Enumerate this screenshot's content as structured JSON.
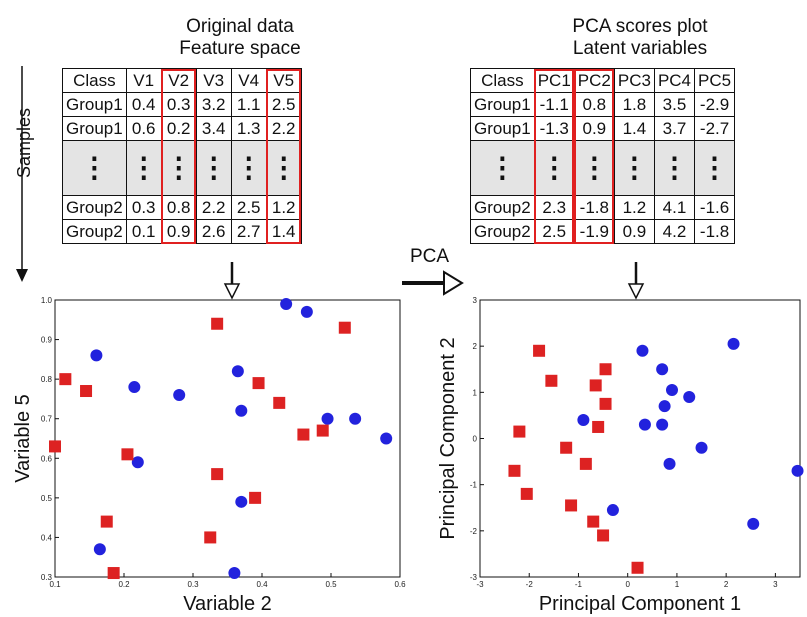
{
  "left_title": [
    "Original data",
    "Feature space"
  ],
  "right_title": [
    "PCA scores plot",
    "Latent variables"
  ],
  "samples_label": "Samples",
  "pca_label": "PCA",
  "left_table": {
    "headers": [
      "Class",
      "V1",
      "V2",
      "V3",
      "V4",
      "V5"
    ],
    "rows": [
      [
        "Group1",
        "0.4",
        "0.3",
        "3.2",
        "1.1",
        "2.5"
      ],
      [
        "Group1",
        "0.6",
        "0.2",
        "3.4",
        "1.3",
        "2.2"
      ],
      [
        "⋮",
        "⋮",
        "⋮",
        "⋮",
        "⋮",
        "⋮"
      ],
      [
        "Group2",
        "0.3",
        "0.8",
        "2.2",
        "2.5",
        "1.2"
      ],
      [
        "Group2",
        "0.1",
        "0.9",
        "2.6",
        "2.7",
        "1.4"
      ]
    ]
  },
  "right_table": {
    "headers": [
      "Class",
      "PC1",
      "PC2",
      "PC3",
      "PC4",
      "PC5"
    ],
    "rows": [
      [
        "Group1",
        "-1.1",
        "0.8",
        "1.8",
        "3.5",
        "-2.9"
      ],
      [
        "Group1",
        "-1.3",
        "0.9",
        "1.4",
        "3.7",
        "-2.7"
      ],
      [
        "⋮",
        "⋮",
        "⋮",
        "⋮",
        "⋮",
        "⋮"
      ],
      [
        "Group2",
        "2.3",
        "-1.8",
        "1.2",
        "4.1",
        "-1.6"
      ],
      [
        "Group2",
        "2.5",
        "-1.9",
        "0.9",
        "4.2",
        "-1.8"
      ]
    ]
  },
  "colors": {
    "group1": "#2222dd",
    "group2": "#dd2222",
    "highlight": "#e02020"
  },
  "chart_data": [
    {
      "type": "scatter",
      "xlabel": "Variable 2",
      "ylabel": "Variable 5",
      "xlim": [
        0.1,
        0.6
      ],
      "ylim": [
        0.3,
        1.0
      ],
      "xticks": [
        "0.1",
        "0.2",
        "0.3",
        "0.4",
        "0.5",
        "0.6"
      ],
      "yticks": [
        "0.3",
        "0.4",
        "0.5",
        "0.6",
        "0.7",
        "0.8",
        "0.9",
        "1.0"
      ],
      "series": [
        {
          "marker": "circle",
          "color": "#2222dd",
          "points": [
            [
              0.16,
              0.86
            ],
            [
              0.215,
              0.78
            ],
            [
              0.28,
              0.76
            ],
            [
              0.165,
              0.37
            ],
            [
              0.22,
              0.59
            ],
            [
              0.435,
              0.99
            ],
            [
              0.465,
              0.97
            ],
            [
              0.365,
              0.82
            ],
            [
              0.37,
              0.72
            ],
            [
              0.495,
              0.7
            ],
            [
              0.535,
              0.7
            ],
            [
              0.58,
              0.65
            ],
            [
              0.37,
              0.49
            ],
            [
              0.36,
              0.31
            ]
          ]
        },
        {
          "marker": "square",
          "color": "#dd2222",
          "points": [
            [
              0.115,
              0.8
            ],
            [
              0.145,
              0.77
            ],
            [
              0.335,
              0.94
            ],
            [
              0.395,
              0.79
            ],
            [
              0.425,
              0.74
            ],
            [
              0.52,
              0.93
            ],
            [
              0.46,
              0.66
            ],
            [
              0.488,
              0.67
            ],
            [
              0.1,
              0.63
            ],
            [
              0.205,
              0.61
            ],
            [
              0.335,
              0.56
            ],
            [
              0.39,
              0.5
            ],
            [
              0.175,
              0.44
            ],
            [
              0.325,
              0.4
            ],
            [
              0.185,
              0.31
            ]
          ]
        }
      ]
    },
    {
      "type": "scatter",
      "xlabel": "Principal Component 1",
      "ylabel": "Principal Component 2",
      "xlim": [
        -3,
        3.5
      ],
      "ylim": [
        -3,
        3
      ],
      "xticks": [
        "-3",
        "-2",
        "-1",
        "0",
        "1",
        "2",
        "3"
      ],
      "yticks": [
        "-3",
        "-2",
        "-1",
        "0",
        "1",
        "2",
        "3"
      ],
      "series": [
        {
          "marker": "circle",
          "color": "#2222dd",
          "points": [
            [
              0.3,
              1.9
            ],
            [
              0.7,
              1.5
            ],
            [
              0.9,
              1.05
            ],
            [
              0.75,
              0.7
            ],
            [
              1.25,
              0.9
            ],
            [
              -0.9,
              0.4
            ],
            [
              0.35,
              0.3
            ],
            [
              0.7,
              0.3
            ],
            [
              1.5,
              -0.2
            ],
            [
              0.85,
              -0.55
            ],
            [
              2.15,
              2.05
            ],
            [
              3.45,
              -0.7
            ],
            [
              -0.3,
              -1.55
            ],
            [
              2.55,
              -1.85
            ]
          ]
        },
        {
          "marker": "square",
          "color": "#dd2222",
          "points": [
            [
              -1.8,
              1.9
            ],
            [
              -1.55,
              1.25
            ],
            [
              -0.45,
              1.5
            ],
            [
              -0.65,
              1.15
            ],
            [
              -0.45,
              0.75
            ],
            [
              -0.6,
              0.25
            ],
            [
              -2.2,
              0.15
            ],
            [
              -1.25,
              -0.2
            ],
            [
              -0.85,
              -0.55
            ],
            [
              -2.3,
              -0.7
            ],
            [
              -2.05,
              -1.2
            ],
            [
              -1.15,
              -1.45
            ],
            [
              -0.7,
              -1.8
            ],
            [
              -0.5,
              -2.1
            ],
            [
              0.2,
              -2.8
            ]
          ]
        }
      ]
    }
  ]
}
